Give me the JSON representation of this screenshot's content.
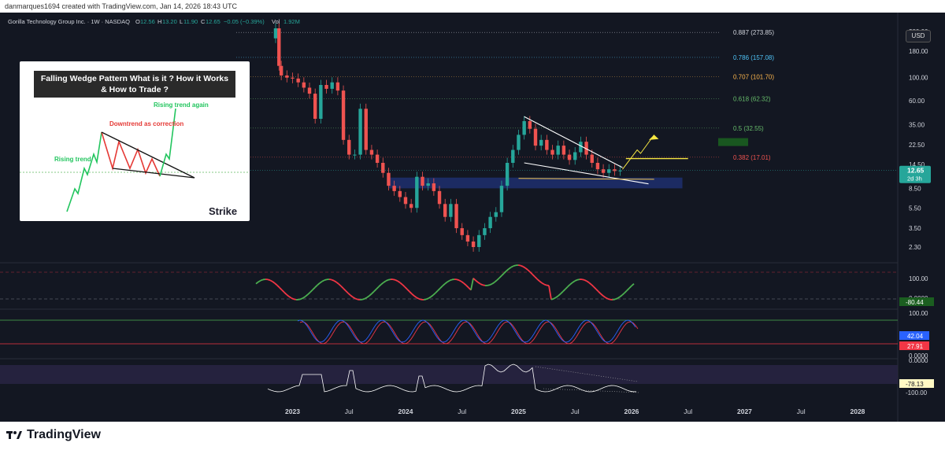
{
  "header": {
    "credit": "danmarques1694 created with TradingView.com, Jan 14, 2026 18:43 UTC",
    "symbol": "Gorilla Technology Group Inc. · 1W · NASDAQ",
    "o_label": "O",
    "o_value": "12.56",
    "h_label": "H",
    "h_value": "13.20",
    "l_label": "L",
    "l_value": "11.90",
    "c_label": "C",
    "c_value": "12.65",
    "change": "−0.05 (−0.39%)",
    "vol_label": "Vol",
    "vol_value": "1.92M"
  },
  "currency": "USD",
  "footer": {
    "brand": "TradingView"
  },
  "colors": {
    "bg": "#131722",
    "up": "#26a69a",
    "down": "#ef5350",
    "zone": "#1e2f6e",
    "wedge": "#ffffff",
    "breakout": "#f5e642",
    "macd_up": "#4caf50",
    "macd_down": "#f23645",
    "stoch_k": "#2962ff",
    "stoch_d": "#f23645",
    "wr": "#ffffff"
  },
  "inset": {
    "title": "Falling Wedge Pattern What is it ? How it Works & How to Trade ?",
    "label_rising": "Rising trend",
    "label_downtrend": "Downtrend as correction",
    "label_rising_again": "Rising trend again",
    "logo_text": "Strike"
  },
  "chart_data": {
    "type": "candlestick",
    "scale": "log",
    "x_labels": [
      "2023",
      "Jul",
      "2024",
      "Jul",
      "2025",
      "Jul",
      "2026",
      "Jul",
      "2027",
      "Jul",
      "2028"
    ],
    "price_axis_labels": [
      "280.00",
      "180.00",
      "100.00",
      "60.00",
      "35.00",
      "22.50",
      "14.50",
      "12.65",
      "8.50",
      "5.50",
      "3.50",
      "2.30"
    ],
    "fib_levels": [
      {
        "label": "0.887 (273.85)",
        "price": 273.85,
        "color": "#d1d4dc"
      },
      {
        "label": "0.786 (157.08)",
        "price": 157.08,
        "color": "#4fc3f7"
      },
      {
        "label": "0.707 (101.70)",
        "price": 101.7,
        "color": "#ffb74d"
      },
      {
        "label": "0.618 (62.32)",
        "price": 62.32,
        "color": "#66bb6a"
      },
      {
        "label": "0.5 (32.55)",
        "price": 32.55,
        "color": "#66bb6a"
      },
      {
        "label": "0.382 (17.01)",
        "price": 17.01,
        "color": "#ef5350"
      }
    ],
    "last_price": {
      "value": "12.65",
      "countdown": "2d 3h"
    },
    "weekly_closes": [
      [
        2022.85,
        300
      ],
      [
        2022.88,
        130
      ],
      [
        2022.9,
        105
      ],
      [
        2022.95,
        100
      ],
      [
        2023.0,
        98
      ],
      [
        2023.05,
        90
      ],
      [
        2023.1,
        80
      ],
      [
        2023.15,
        70
      ],
      [
        2023.2,
        40
      ],
      [
        2023.25,
        85
      ],
      [
        2023.3,
        78
      ],
      [
        2023.35,
        90
      ],
      [
        2023.4,
        75
      ],
      [
        2023.45,
        25
      ],
      [
        2023.5,
        18
      ],
      [
        2023.55,
        18
      ],
      [
        2023.6,
        50
      ],
      [
        2023.65,
        20
      ],
      [
        2023.7,
        18
      ],
      [
        2023.75,
        15
      ],
      [
        2023.8,
        12
      ],
      [
        2023.85,
        9
      ],
      [
        2023.9,
        8
      ],
      [
        2023.95,
        7
      ],
      [
        2024.0,
        6
      ],
      [
        2024.05,
        5.5
      ],
      [
        2024.1,
        11
      ],
      [
        2024.15,
        9
      ],
      [
        2024.2,
        9.5
      ],
      [
        2024.25,
        8
      ],
      [
        2024.3,
        6
      ],
      [
        2024.35,
        4.5
      ],
      [
        2024.4,
        6
      ],
      [
        2024.45,
        3.5
      ],
      [
        2024.5,
        3.0
      ],
      [
        2024.55,
        2.6
      ],
      [
        2024.6,
        2.3
      ],
      [
        2024.65,
        3.0
      ],
      [
        2024.7,
        3.5
      ],
      [
        2024.75,
        4.5
      ],
      [
        2024.8,
        5.0
      ],
      [
        2024.85,
        9
      ],
      [
        2024.9,
        15
      ],
      [
        2024.95,
        20
      ],
      [
        2025.0,
        28
      ],
      [
        2025.05,
        38
      ],
      [
        2025.1,
        32
      ],
      [
        2025.15,
        22
      ],
      [
        2025.2,
        25
      ],
      [
        2025.25,
        20
      ],
      [
        2025.3,
        18
      ],
      [
        2025.35,
        22
      ],
      [
        2025.4,
        18
      ],
      [
        2025.45,
        16
      ],
      [
        2025.5,
        19
      ],
      [
        2025.55,
        24
      ],
      [
        2025.6,
        18
      ],
      [
        2025.65,
        15
      ],
      [
        2025.7,
        13
      ],
      [
        2025.75,
        12
      ],
      [
        2025.8,
        13
      ],
      [
        2025.85,
        12.5
      ],
      [
        2025.9,
        12.65
      ]
    ],
    "zones": [
      {
        "name": "demand",
        "from": 8.5,
        "to": 10.8,
        "x0": 2023.85,
        "x1": 2026.45
      }
    ],
    "indicators": [
      {
        "name": "MACD-like",
        "axis_labels": [
          "100.00",
          "0.0000"
        ],
        "last_value": "-80.44"
      },
      {
        "name": "Stochastic",
        "axis_labels": [
          "100.00",
          "0.0000"
        ],
        "values": [
          "42.04",
          "27.91"
        ]
      },
      {
        "name": "Williams %R",
        "axis_labels": [
          "0.0000",
          "-100.00"
        ],
        "last_value": "-78.13"
      }
    ]
  }
}
